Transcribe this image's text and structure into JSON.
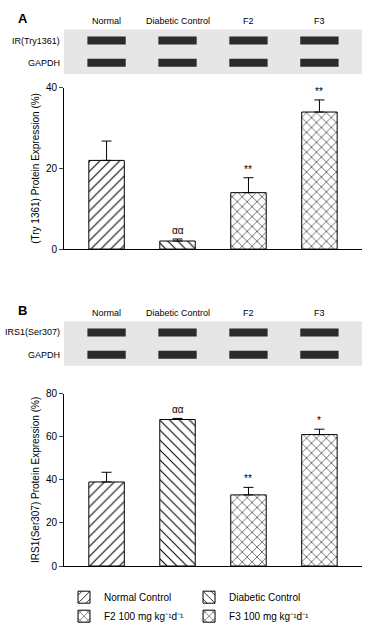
{
  "chart_data": [
    {
      "type": "bar",
      "panel": "A",
      "blot": {
        "lanes": [
          "Normal",
          "Diabetic Control",
          "F2",
          "F3"
        ],
        "rows": [
          "IR(Try1361)",
          "GAPDH"
        ]
      },
      "y_label": "(Try 1361) Protein Expression (%)",
      "ylim": [
        0,
        40
      ],
      "yticks": [
        0,
        20,
        40
      ],
      "tick_labels": "y",
      "series": [
        {
          "name": "Normal Control",
          "marker": "/",
          "color": "#000000",
          "values": [
            22
          ],
          "errors": [
            4.8
          ]
        },
        {
          "name": "Diabetic Control",
          "marker": "\\",
          "color": "#000000",
          "values": [
            2
          ],
          "errors": [
            0.5
          ]
        },
        {
          "name": "F2 100 mg kg⁻¹d⁻¹",
          "marker": "x",
          "color": "#000000",
          "values": [
            14
          ],
          "errors": [
            3.7
          ]
        },
        {
          "name": "F3 100 mg kg⁻¹d⁻¹",
          "marker": "x",
          "color": "#000000",
          "values": [
            34
          ],
          "errors": [
            3
          ]
        }
      ],
      "annotations": [
        null,
        "αα",
        "**",
        "**"
      ]
    },
    {
      "type": "bar",
      "panel": "B",
      "blot": {
        "lanes": [
          "Normal",
          "Diabetic Control",
          "F2",
          "F3"
        ],
        "rows": [
          "IRS1(Ser307)",
          "GAPDH"
        ]
      },
      "y_label": "IRS1(Ser307) Protein Expression (%)",
      "ylim": [
        0,
        80
      ],
      "yticks": [
        0,
        20,
        40,
        60,
        80
      ],
      "tick_labels": "y",
      "legend": "bottom",
      "series": [
        {
          "name": "Normal Control",
          "marker": "/",
          "color": "#000000",
          "values": [
            39
          ],
          "errors": [
            4.5
          ]
        },
        {
          "name": "Diabetic Control",
          "marker": "\\",
          "color": "#000000",
          "values": [
            68
          ],
          "errors": [
            0.5
          ]
        },
        {
          "name": "F2 100 mg kg⁻¹d⁻¹",
          "marker": "x",
          "color": "#000000",
          "values": [
            33
          ],
          "errors": [
            3.5
          ]
        },
        {
          "name": "F3 100 mg kg⁻¹d⁻¹",
          "marker": "x",
          "color": "#000000",
          "values": [
            61
          ],
          "errors": [
            2.5
          ]
        }
      ],
      "annotations": [
        null,
        "αα",
        "**",
        "*"
      ]
    }
  ]
}
